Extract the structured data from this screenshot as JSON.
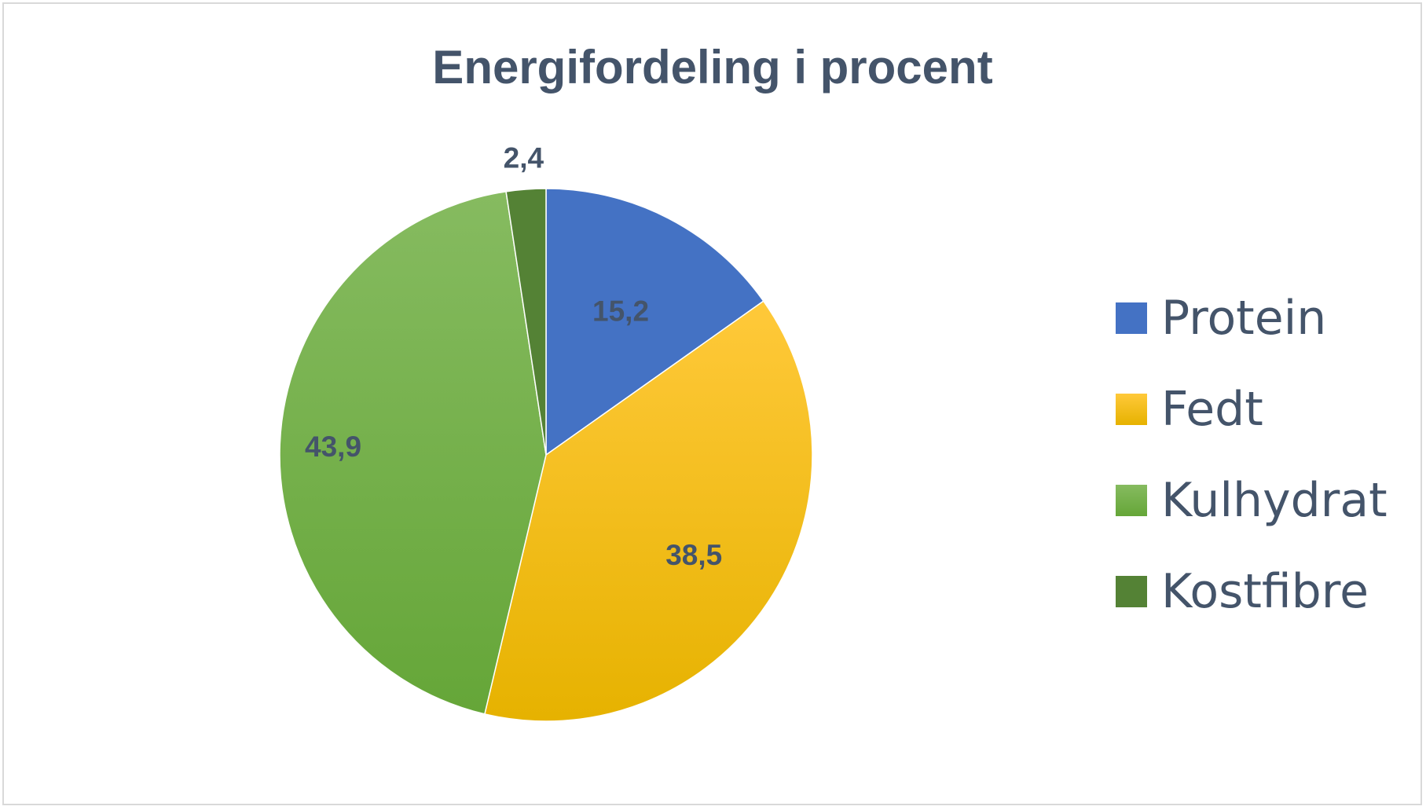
{
  "chart_data": {
    "type": "pie",
    "title": "Energifordeling i procent",
    "decimal_separator": ",",
    "start_angle_deg": 0,
    "direction": "clockwise",
    "legend_position": "right",
    "slices": [
      {
        "label": "Protein",
        "value": 15.2,
        "display": "15,2",
        "color": "#4472c4",
        "gradient": false
      },
      {
        "label": "Fedt",
        "value": 38.5,
        "display": "38,5",
        "color": "#ffc000",
        "gradient": true,
        "gradient_from": "#ffc93a",
        "gradient_to": "#e6b200"
      },
      {
        "label": "Kulhydrat",
        "value": 43.9,
        "display": "43,9",
        "color": "#70ad47",
        "gradient": true,
        "gradient_from": "#86bb60",
        "gradient_to": "#65a638"
      },
      {
        "label": "Kostfibre",
        "value": 2.4,
        "display": "2,4",
        "color": "#548235",
        "gradient": false
      }
    ]
  }
}
